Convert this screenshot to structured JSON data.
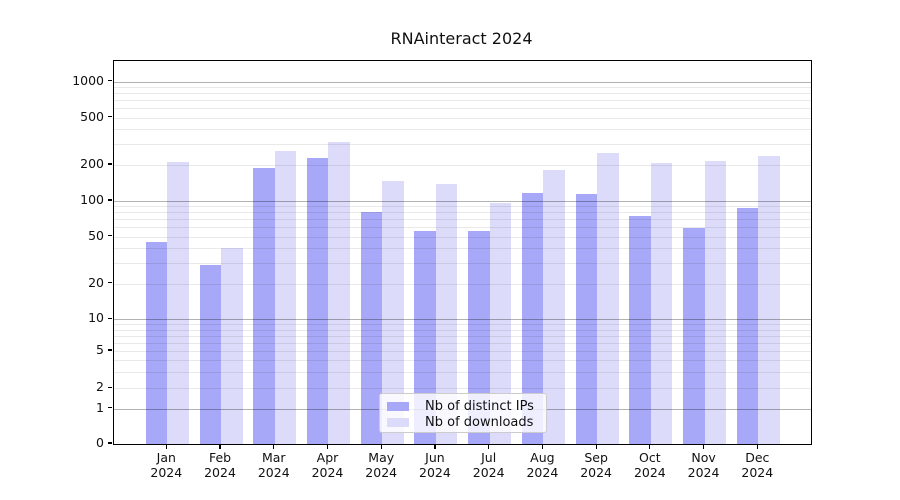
{
  "chart_data": {
    "type": "bar",
    "title": "RNAinteract 2024",
    "categories": [
      "Jan",
      "Feb",
      "Mar",
      "Apr",
      "May",
      "Jun",
      "Jul",
      "Aug",
      "Sep",
      "Oct",
      "Nov",
      "Dec"
    ],
    "x_tick_year": "2024",
    "series": [
      {
        "name": "Nb of distinct IPs",
        "color": "#a8a8f8",
        "values": [
          45,
          29,
          190,
          228,
          80,
          56,
          56,
          117,
          115,
          75,
          59,
          88
        ]
      },
      {
        "name": "Nb of downloads",
        "color": "#dcdcfa",
        "values": [
          212,
          40,
          265,
          310,
          147,
          138,
          97,
          183,
          252,
          207,
          215,
          240
        ]
      }
    ],
    "xlabel": "",
    "ylabel": "",
    "yscale": "symlog",
    "ylim": [
      0,
      1500
    ],
    "y_ticks": [
      0,
      1,
      2,
      5,
      10,
      20,
      50,
      100,
      200,
      500,
      1000
    ],
    "grid": "horizontal major and minor, drawn over bars",
    "legend_position": "lower center inside plot"
  },
  "colors": {
    "background": "#ffffff",
    "spine": "#000000",
    "major_grid": "#b3b3b3",
    "minor_grid": "#e8e8e8",
    "text": "#111111"
  }
}
